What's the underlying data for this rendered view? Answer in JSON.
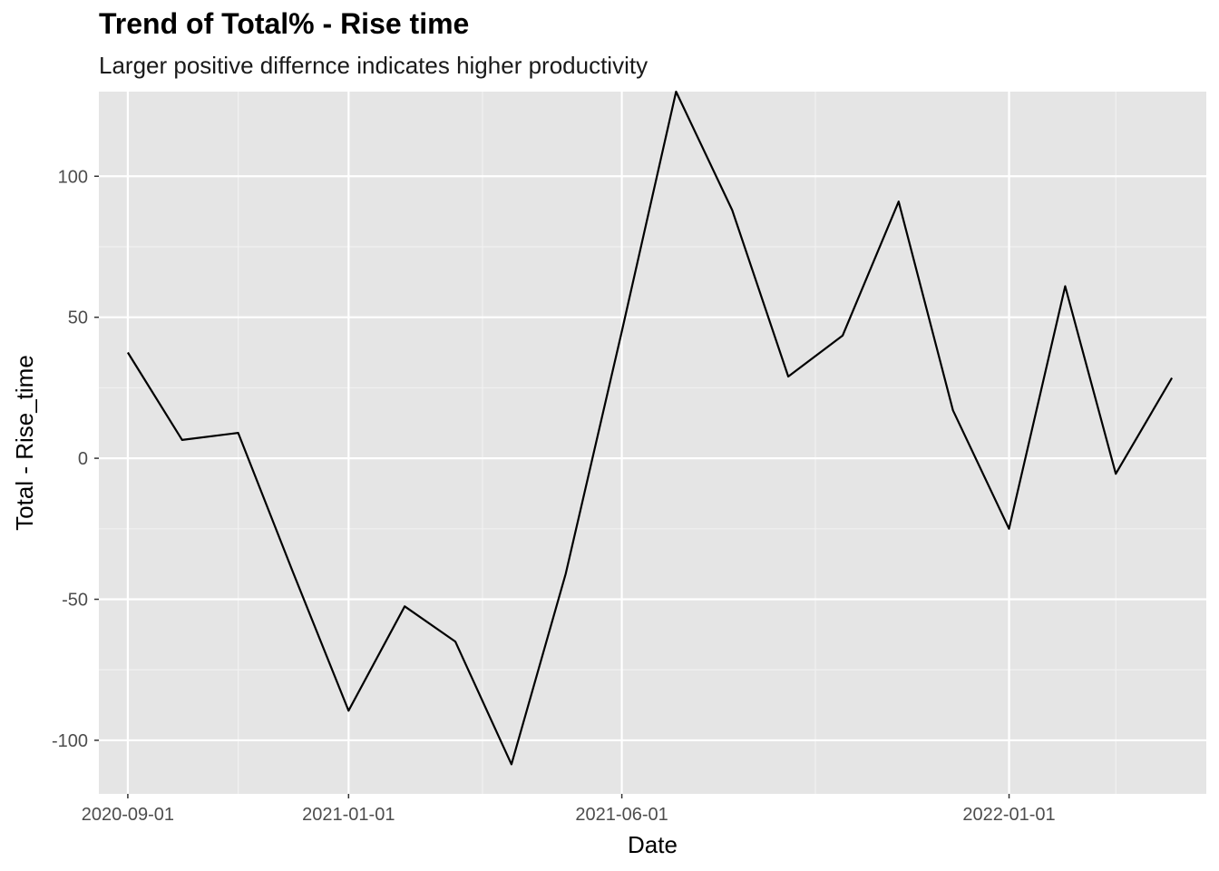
{
  "chart_data": {
    "type": "line",
    "title": "Trend of Total% - Rise time",
    "subtitle": "Larger positive differnce indicates higher productivity",
    "xlabel": "Date",
    "ylabel": "Total - Rise_time",
    "x_tick_labels": [
      "2020-09-01",
      "2021-01-01",
      "2021-06-01",
      "2022-01-01"
    ],
    "x_ticks": [
      "2020-09-01",
      "2021-01-01",
      "2021-06-01",
      "2022-01-01"
    ],
    "x_minor_ticks": [
      "2020-11-01",
      "2021-03-16",
      "2021-09-16",
      "2022-03-01"
    ],
    "y_ticks": [
      -100,
      -50,
      0,
      50,
      100
    ],
    "y_tick_labels": [
      "-100",
      "-50",
      "0",
      "50",
      "100"
    ],
    "xlim": [
      "2020-08-16",
      "2022-04-20"
    ],
    "ylim": [
      -119,
      130
    ],
    "grid": true,
    "series": [
      {
        "color": "#000000",
        "x": [
          "2020-09-01",
          "2020-10-01",
          "2020-11-01",
          "2020-12-01",
          "2021-01-01",
          "2021-02-01",
          "2021-03-01",
          "2021-04-01",
          "2021-05-01",
          "2021-06-01",
          "2021-07-01",
          "2021-08-01",
          "2021-09-01",
          "2021-10-01",
          "2021-11-01",
          "2021-12-01",
          "2022-01-01",
          "2022-02-01",
          "2022-03-01",
          "2022-04-01"
        ],
        "values": [
          37.5,
          6.5,
          9,
          -40,
          -89.5,
          -52.5,
          -65,
          -108.5,
          -41,
          45,
          130,
          88,
          29,
          43.5,
          91,
          17,
          -25,
          61,
          -5.5,
          28.5
        ]
      }
    ],
    "colors": {
      "panel_background": "#e5e5e5",
      "grid_major": "#ffffff",
      "grid_minor": "#f2f2f2",
      "line": "#000000",
      "tick_text": "#4d4d4d"
    }
  }
}
